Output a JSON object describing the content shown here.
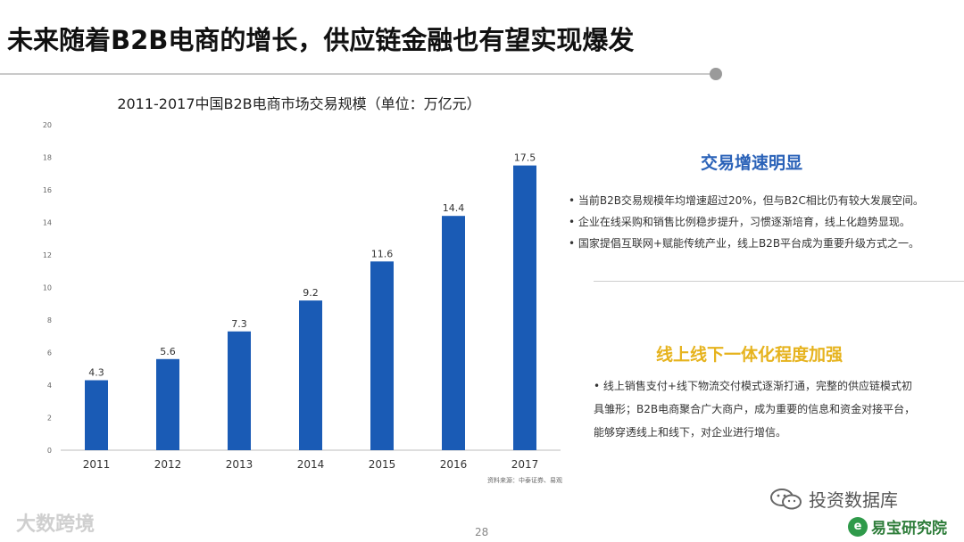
{
  "slide": {
    "title": "未来随着B2B电商的增长，供应链金融也有望实现爆发",
    "page_number": "28"
  },
  "right_panel": {
    "section1": {
      "title": "交易增速明显",
      "title_color": "#2a62b8",
      "bullets": [
        "• 当前B2B交易规模年均增速超过20%，但与B2C相比仍有较大发展空间。",
        "• 企业在线采购和销售比例稳步提升，习惯逐渐培育，线上化趋势显现。",
        "• 国家提倡互联网+赋能传统产业，线上B2B平台成为重要升级方式之一。"
      ]
    },
    "section2": {
      "title": "线上线下一体化程度加强",
      "title_color": "#e6b31e",
      "bullets": [
        "• 线上销售支付+线下物流交付模式逐渐打通，完整的供应链模式初",
        "  具雏形；B2B电商聚合广大商户，成为重要的信息和资金对接平台，",
        "  能够穿透线上和线下，对企业进行增信。"
      ]
    }
  },
  "footer": {
    "watermark_left": "大数跨境",
    "wechat_label": "投资数据库",
    "logo_text": "易宝研究院",
    "logo_mark": "e"
  },
  "colors": {
    "bar": "#1a5bb5",
    "accent_blue": "#2a62b8",
    "accent_yellow": "#e6b31e"
  },
  "chart_data": {
    "type": "bar",
    "title": "2011-2017中国B2B电商市场交易规模（单位：万亿元）",
    "categories": [
      "2011",
      "2012",
      "2013",
      "2014",
      "2015",
      "2016",
      "2017"
    ],
    "values": [
      4.3,
      5.6,
      7.3,
      9.2,
      11.6,
      14.4,
      17.5
    ],
    "value_labels": [
      "4.3",
      "5.6",
      "7.3",
      "9.2",
      "11.6",
      "14.4",
      "17.5"
    ],
    "yticks": [
      "0",
      "2",
      "4",
      "6",
      "8",
      "10",
      "12",
      "14",
      "16",
      "18",
      "20"
    ],
    "ylim": [
      0,
      20
    ],
    "source": "资料来源：中泰证券、易观",
    "grid": false
  }
}
